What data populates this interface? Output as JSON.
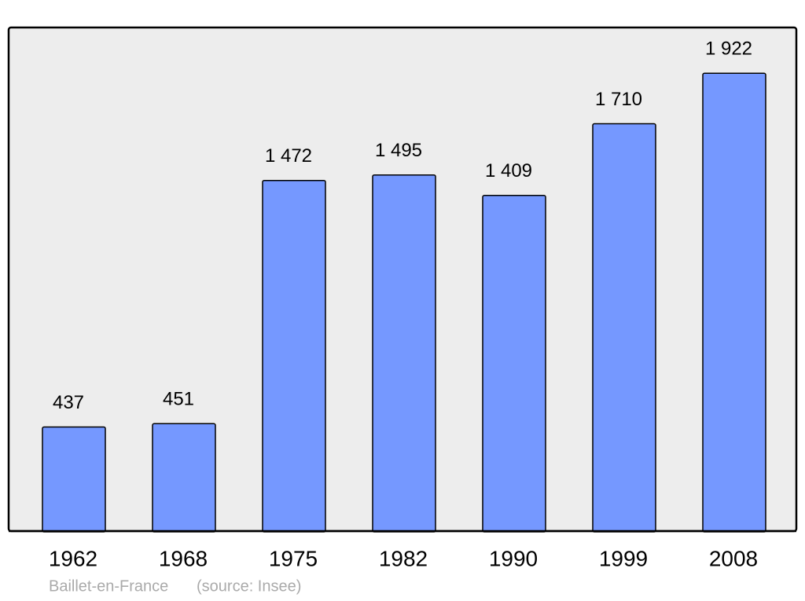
{
  "chart_data": {
    "type": "bar",
    "title": "Baillet-en-France",
    "source": "(source: Insee)",
    "categories": [
      "1962",
      "1968",
      "1975",
      "1982",
      "1990",
      "1999",
      "2008"
    ],
    "values": [
      437,
      451,
      1472,
      1495,
      1409,
      1710,
      1922
    ],
    "value_labels": [
      "437",
      "451",
      "1 472",
      "1 495",
      "1 409",
      "1 710",
      "1 922"
    ],
    "color": "#7598ff"
  }
}
